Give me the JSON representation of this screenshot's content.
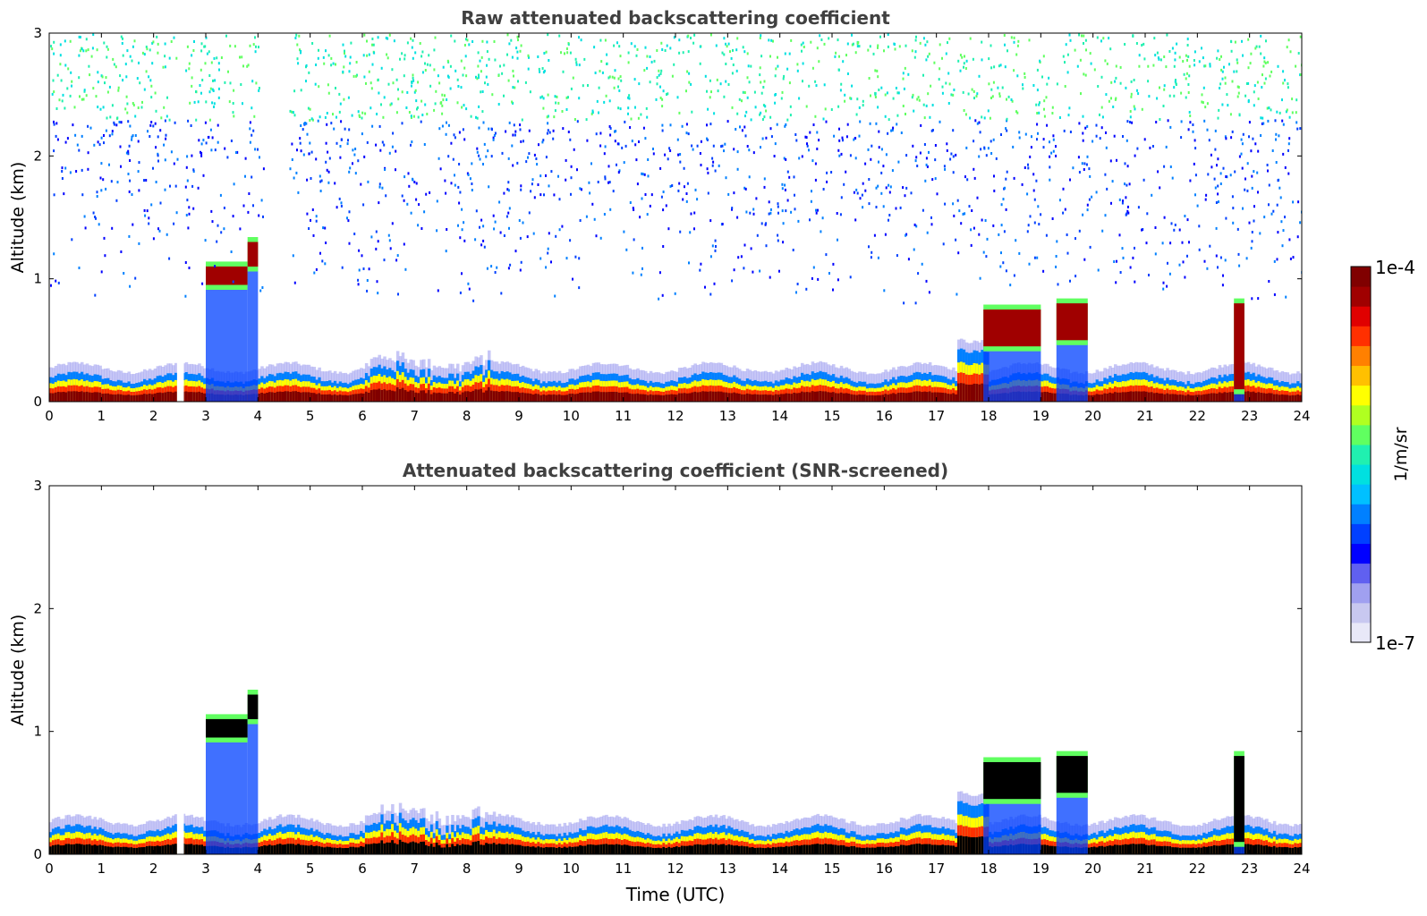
{
  "chart_data": [
    {
      "type": "heatmap",
      "title": "Raw attenuated backscattering coefficient",
      "xlabel": "",
      "ylabel": "Altitude (km)",
      "xlim": [
        0,
        24
      ],
      "ylim": [
        0,
        3
      ],
      "x_ticks": [
        "0",
        "1",
        "2",
        "3",
        "4",
        "5",
        "6",
        "7",
        "8",
        "9",
        "10",
        "11",
        "12",
        "13",
        "14",
        "15",
        "16",
        "17",
        "18",
        "19",
        "20",
        "21",
        "22",
        "23",
        "24"
      ],
      "y_ticks": [
        "0",
        "1",
        "2",
        "3"
      ],
      "features": [
        {
          "name": "surface aerosol layer",
          "t_start": 0,
          "t_end": 24,
          "alt_top_km": 0.2
        },
        {
          "name": "low cloud",
          "t_start": 3.0,
          "t_end": 3.8,
          "alt_base_km": 0.95,
          "alt_top_km": 1.1
        },
        {
          "name": "rising cloud",
          "t_start": 3.8,
          "t_end": 4.0,
          "alt_base_km": 1.1,
          "alt_top_km": 1.3
        },
        {
          "name": "cloud",
          "t_start": 17.9,
          "t_end": 19.0,
          "alt_base_km": 0.45,
          "alt_top_km": 0.75
        },
        {
          "name": "cloud",
          "t_start": 19.3,
          "t_end": 19.9,
          "alt_base_km": 0.5,
          "alt_top_km": 0.8
        },
        {
          "name": "isolated cloud",
          "t_start": 22.7,
          "t_end": 22.9,
          "alt_base_km": 0.1,
          "alt_top_km": 0.8
        }
      ],
      "missing_data_intervals": [
        [
          2.45,
          2.58
        ]
      ],
      "noise_above_km": 0.8
    },
    {
      "type": "heatmap",
      "title": "Attenuated backscattering coefficient (SNR-screened)",
      "xlabel": "Time (UTC)",
      "ylabel": "Altitude (km)",
      "xlim": [
        0,
        24
      ],
      "ylim": [
        0,
        3
      ],
      "x_ticks": [
        "0",
        "1",
        "2",
        "3",
        "4",
        "5",
        "6",
        "7",
        "8",
        "9",
        "10",
        "11",
        "12",
        "13",
        "14",
        "15",
        "16",
        "17",
        "18",
        "19",
        "20",
        "21",
        "22",
        "23",
        "24"
      ],
      "y_ticks": [
        "0",
        "1",
        "2",
        "3"
      ],
      "screened": true
    }
  ],
  "colorbar": {
    "max_label": "1e-4",
    "min_label": "1e-7",
    "unit_label": "1/m/sr",
    "scale": "log",
    "colors": [
      "#e8e8f8",
      "#c8c8f0",
      "#a0a0f0",
      "#6060f0",
      "#0000ff",
      "#0040ff",
      "#0080ff",
      "#00c0ff",
      "#00e0e0",
      "#20f0b0",
      "#60ff60",
      "#b0ff20",
      "#ffff00",
      "#ffc000",
      "#ff8000",
      "#ff3000",
      "#e00000",
      "#a00000",
      "#800000"
    ]
  }
}
